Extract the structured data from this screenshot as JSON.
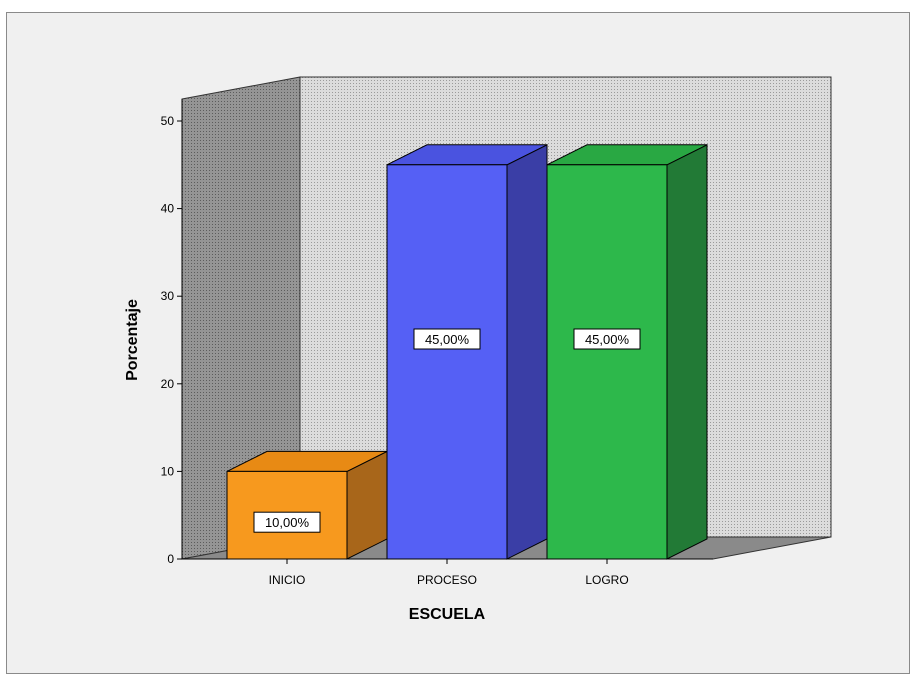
{
  "chart_data": {
    "type": "bar",
    "style": "3d",
    "categories": [
      "INICIO",
      "PROCESO",
      "LOGRO"
    ],
    "values": [
      10,
      45,
      45
    ],
    "data_labels": [
      "10,00%",
      "45,00%",
      "45,00%"
    ],
    "colors": [
      "#f7991e",
      "#5560f5",
      "#2db84b"
    ],
    "side_colors": [
      "#a8661a",
      "#3a3ea6",
      "#227a36"
    ],
    "top_colors": [
      "#e88a14",
      "#4a53e0",
      "#29a843"
    ],
    "xlabel": "ESCUELA",
    "ylabel": "Porcentaje",
    "ylim": [
      0,
      50
    ],
    "yticks": [
      "0",
      "10",
      "20",
      "30",
      "40",
      "50"
    ],
    "grid": false,
    "legend": "none"
  },
  "colors": {
    "background": "#f0f0f0",
    "wall_back": "#d8d8d8",
    "wall_side": "#8c8c8c",
    "floor": "#8a8a8a"
  }
}
